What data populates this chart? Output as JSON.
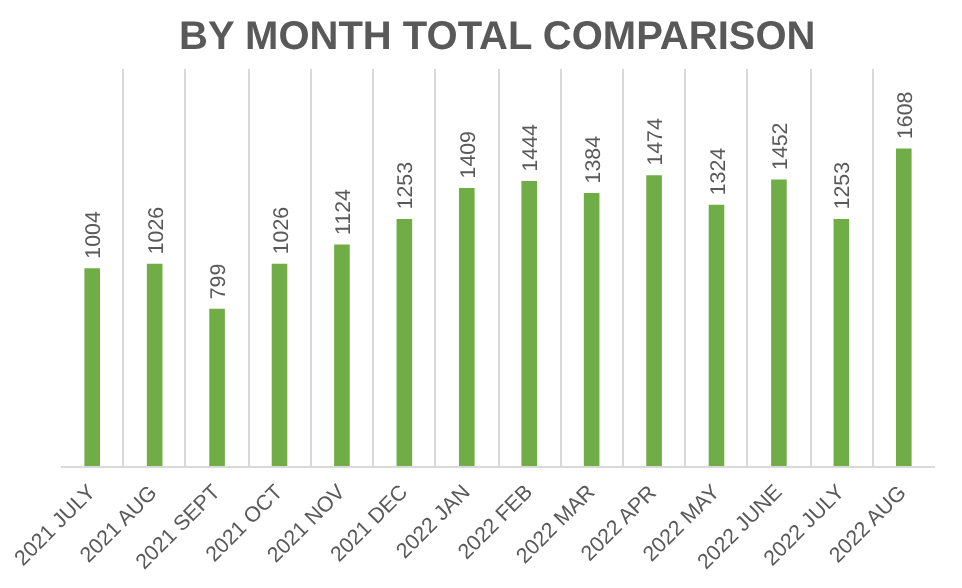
{
  "chart_data": {
    "type": "bar",
    "title": "BY MONTH TOTAL COMPARISON",
    "categories": [
      "2021 JULY",
      "2021 AUG",
      "2021 SEPT",
      "2021 OCT",
      "2021 NOV",
      "2021 DEC",
      "2022 JAN",
      "2022 FEB",
      "2022 MAR",
      "2022 APR",
      "2022 MAY",
      "2022 JUNE",
      "2022 JULY",
      "2022 AUG"
    ],
    "values": [
      1004,
      1026,
      799,
      1026,
      1124,
      1253,
      1409,
      1444,
      1384,
      1474,
      1324,
      1452,
      1253,
      1608
    ],
    "color": "#70ad47",
    "data_labels": true,
    "grid": "x"
  }
}
